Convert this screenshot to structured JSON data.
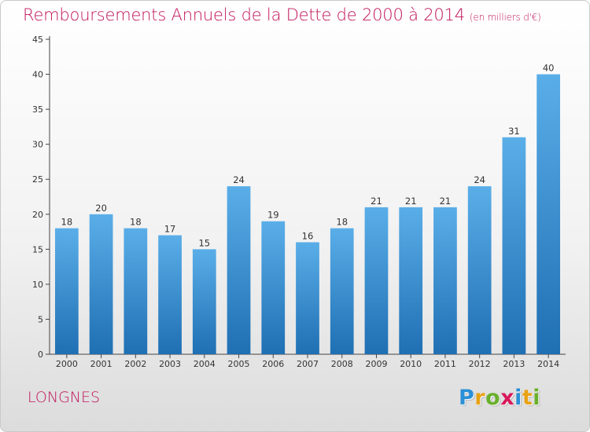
{
  "title": "Remboursements Annuels de la Dette de 2000 à 2014",
  "subtitle": "(en milliers d'€)",
  "commune": "LONGNES",
  "logo": {
    "letters": [
      "P",
      "r",
      "o",
      "x",
      "i",
      "t",
      "i"
    ],
    "colors": [
      "#2a8fd6",
      "#e8a215",
      "#6ab02c",
      "#d8185a",
      "#2a8fd6",
      "#e8a215",
      "#6ab02c"
    ]
  },
  "colors": {
    "accent": "#c0145a",
    "bar_top": "#5aaee8",
    "bar_bottom": "#1f6fb3"
  },
  "chart_data": {
    "type": "bar",
    "categories": [
      "2000",
      "2001",
      "2002",
      "2003",
      "2004",
      "2005",
      "2006",
      "2007",
      "2008",
      "2009",
      "2010",
      "2011",
      "2012",
      "2013",
      "2014"
    ],
    "values": [
      18,
      20,
      18,
      17,
      15,
      24,
      19,
      16,
      18,
      21,
      21,
      21,
      24,
      31,
      40
    ],
    "title": "Remboursements Annuels de la Dette de 2000 à 2014",
    "ylim": [
      0,
      45
    ],
    "yticks": [
      0,
      5,
      10,
      15,
      20,
      25,
      30,
      35,
      40,
      45
    ],
    "grid": false,
    "legend": "none"
  }
}
